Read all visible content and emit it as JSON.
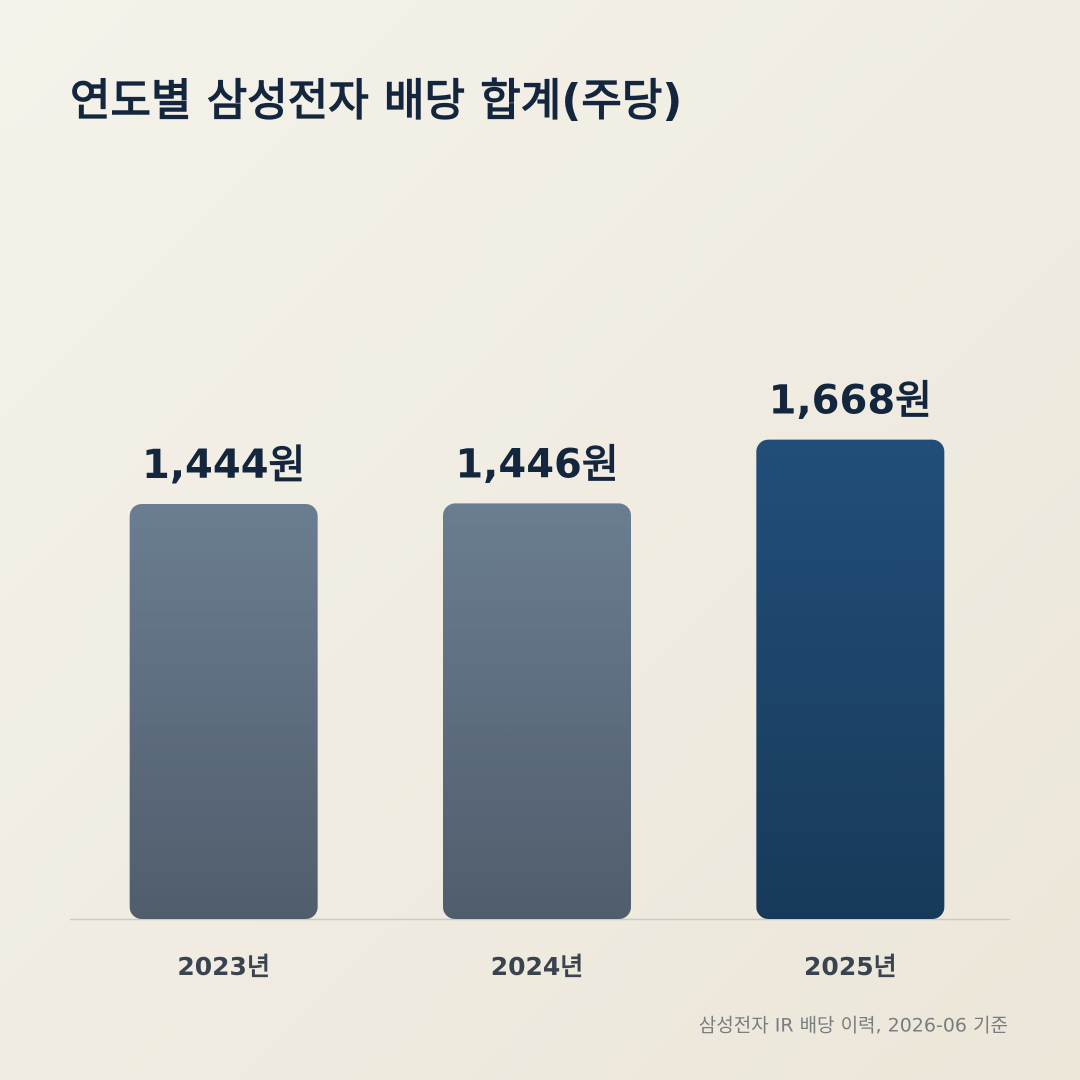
{
  "chart_data": {
    "type": "bar",
    "title": "연도별 삼성전자 배당 합계(주당)",
    "categories": [
      "2023년",
      "2024년",
      "2025년"
    ],
    "values": [
      1444,
      1446,
      1668
    ],
    "value_labels": [
      "1,444원",
      "1,446원",
      "1,668원"
    ],
    "colors": [
      "#66778a",
      "#66778a",
      "#1f4a73"
    ],
    "ylim": [
      0,
      2000
    ],
    "source": "삼성전자 IR 배당 이력, 2026-06 기준"
  }
}
